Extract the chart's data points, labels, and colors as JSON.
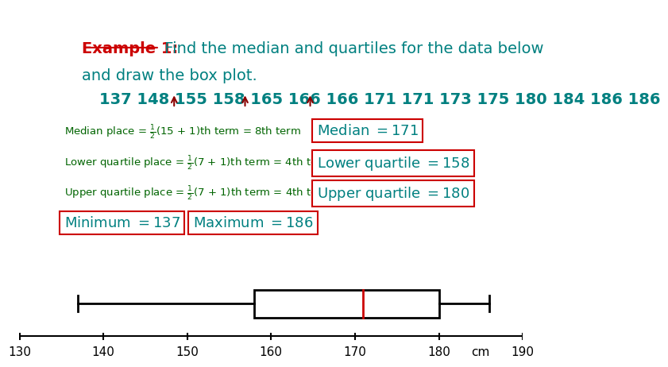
{
  "data_values": "137 148 155 158 165 166 166 171 171 173 175 180 184 186 186",
  "minimum": 137,
  "maximum": 186,
  "q1": 158,
  "median": 171,
  "q3": 180,
  "axis_min": 130,
  "axis_max": 190,
  "axis_ticks": [
    130,
    140,
    150,
    160,
    170,
    180,
    190
  ],
  "bg_color": "#ffffff",
  "teal_color": "#008080",
  "dark_red_color": "#8B0000",
  "red_color": "#cc0000",
  "black_color": "#000000",
  "formula_color": "#006400",
  "formula_fs": 9.5,
  "result_fs": 13,
  "title_fs": 14,
  "data_fs": 14
}
